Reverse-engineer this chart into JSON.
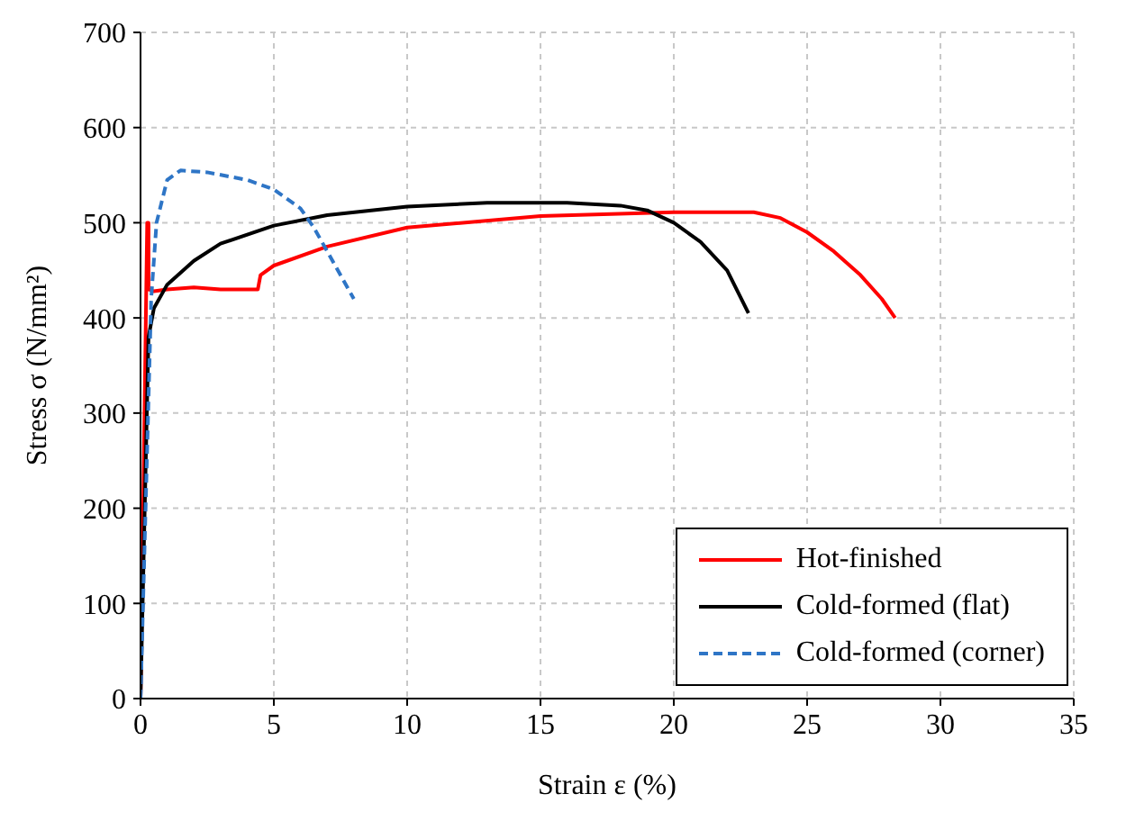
{
  "chart_data": {
    "type": "line",
    "xlabel": "Strain ε (%)",
    "ylabel": "Stress σ (N/mm²)",
    "xlim": [
      0,
      35
    ],
    "xticks": [
      0,
      5,
      10,
      15,
      20,
      25,
      30,
      35
    ],
    "ylim": [
      0,
      700
    ],
    "yticks": [
      0,
      100,
      200,
      300,
      400,
      500,
      600,
      700
    ],
    "grid": true,
    "legend": "bottom right",
    "marker": "none",
    "series": [
      {
        "name": "Hot-finished",
        "color": "#ff0000",
        "line_style": "solid",
        "x": [
          0,
          0.25,
          0.3,
          0.3,
          0.5,
          1,
          2,
          3,
          4,
          4.4,
          4.5,
          5,
          7,
          10,
          15,
          20,
          23,
          24,
          25,
          26,
          27,
          27.8,
          28.3
        ],
        "values": [
          0,
          500,
          500,
          430,
          428,
          430,
          432,
          430,
          430,
          430,
          445,
          455,
          475,
          495,
          507,
          511,
          511,
          505,
          490,
          470,
          445,
          420,
          400
        ]
      },
      {
        "name": "Cold-formed (flat)",
        "color": "#000000",
        "line_style": "solid",
        "x": [
          0,
          0.3,
          0.5,
          1,
          2,
          3,
          5,
          7,
          10,
          13,
          16,
          18,
          19,
          20,
          21,
          22,
          22.8
        ],
        "values": [
          0,
          380,
          410,
          435,
          460,
          478,
          497,
          508,
          517,
          521,
          521,
          518,
          513,
          500,
          480,
          450,
          405
        ]
      },
      {
        "name": "Cold-formed (corner)",
        "color": "#2e75c6",
        "line_style": "dashed",
        "x": [
          0,
          0.4,
          0.6,
          1,
          1.5,
          2.5,
          4,
          5,
          6,
          6.5,
          7,
          7.5,
          8
        ],
        "values": [
          0,
          420,
          500,
          545,
          555,
          553,
          545,
          535,
          515,
          495,
          470,
          445,
          420
        ]
      }
    ]
  }
}
